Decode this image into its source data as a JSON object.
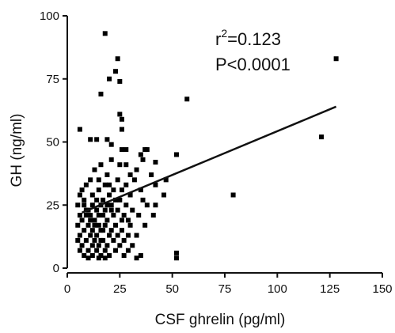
{
  "chart_data": {
    "type": "scatter",
    "title": "",
    "xlabel": "CSF ghrelin (pg/ml)",
    "ylabel": "GH (ng/ml)",
    "xlim": [
      0,
      150
    ],
    "ylim": [
      0,
      100
    ],
    "x_ticks": [
      0,
      25,
      50,
      75,
      100,
      125,
      150
    ],
    "y_ticks": [
      0,
      25,
      50,
      75,
      100
    ],
    "grid": false,
    "annotations": {
      "r2_base": "r",
      "r2_exp": "2",
      "r2_value": "=0.123",
      "p_value": "P<0.0001"
    },
    "regression_line": {
      "x": [
        7,
        128
      ],
      "y": [
        22,
        64
      ]
    },
    "points": [
      [
        18,
        93
      ],
      [
        24,
        83
      ],
      [
        128,
        83
      ],
      [
        23,
        78
      ],
      [
        20,
        75
      ],
      [
        25,
        74
      ],
      [
        57,
        67
      ],
      [
        16,
        69
      ],
      [
        25,
        61
      ],
      [
        26,
        59
      ],
      [
        26,
        55
      ],
      [
        6,
        55
      ],
      [
        11,
        51
      ],
      [
        14,
        51
      ],
      [
        19,
        51
      ],
      [
        121,
        52
      ],
      [
        21,
        49
      ],
      [
        26,
        47
      ],
      [
        28,
        47
      ],
      [
        37,
        47
      ],
      [
        38,
        47
      ],
      [
        35,
        45
      ],
      [
        52,
        45
      ],
      [
        36,
        43
      ],
      [
        21,
        43
      ],
      [
        16,
        41
      ],
      [
        25,
        41
      ],
      [
        28,
        41
      ],
      [
        42,
        42
      ],
      [
        13,
        39
      ],
      [
        33,
        39
      ],
      [
        30,
        37
      ],
      [
        19,
        37
      ],
      [
        40,
        37
      ],
      [
        15,
        35
      ],
      [
        24,
        35
      ],
      [
        11,
        35
      ],
      [
        32,
        35
      ],
      [
        47,
        35
      ],
      [
        9,
        33
      ],
      [
        18,
        33
      ],
      [
        28,
        33
      ],
      [
        42,
        33
      ],
      [
        7,
        31
      ],
      [
        15,
        31
      ],
      [
        22,
        31
      ],
      [
        35,
        31
      ],
      [
        12,
        29
      ],
      [
        20,
        29
      ],
      [
        30,
        29
      ],
      [
        46,
        29
      ],
      [
        79,
        29
      ],
      [
        8,
        27
      ],
      [
        17,
        27
      ],
      [
        23,
        27
      ],
      [
        25,
        27
      ],
      [
        36,
        27
      ],
      [
        5,
        25
      ],
      [
        12,
        25
      ],
      [
        16,
        25
      ],
      [
        19,
        25
      ],
      [
        28,
        25
      ],
      [
        38,
        25
      ],
      [
        42,
        25
      ],
      [
        9,
        23
      ],
      [
        14,
        23
      ],
      [
        21,
        23
      ],
      [
        24,
        23
      ],
      [
        31,
        23
      ],
      [
        6,
        21
      ],
      [
        11,
        21
      ],
      [
        17,
        21
      ],
      [
        22,
        21
      ],
      [
        27,
        21
      ],
      [
        34,
        21
      ],
      [
        41,
        21
      ],
      [
        7,
        19
      ],
      [
        13,
        19
      ],
      [
        19,
        19
      ],
      [
        26,
        19
      ],
      [
        29,
        19
      ],
      [
        5,
        17
      ],
      [
        10,
        17
      ],
      [
        15,
        17
      ],
      [
        18,
        17
      ],
      [
        23,
        17
      ],
      [
        30,
        17
      ],
      [
        37,
        17
      ],
      [
        8,
        15
      ],
      [
        12,
        15
      ],
      [
        16,
        15
      ],
      [
        21,
        15
      ],
      [
        26,
        15
      ],
      [
        6,
        13
      ],
      [
        11,
        13
      ],
      [
        14,
        13
      ],
      [
        20,
        13
      ],
      [
        24,
        13
      ],
      [
        29,
        13
      ],
      [
        33,
        13
      ],
      [
        5,
        11
      ],
      [
        9,
        11
      ],
      [
        13,
        11
      ],
      [
        17,
        11
      ],
      [
        22,
        11
      ],
      [
        27,
        11
      ],
      [
        7,
        9
      ],
      [
        12,
        9
      ],
      [
        15,
        9
      ],
      [
        19,
        9
      ],
      [
        25,
        9
      ],
      [
        31,
        9
      ],
      [
        6,
        7
      ],
      [
        10,
        7
      ],
      [
        14,
        7
      ],
      [
        18,
        7
      ],
      [
        23,
        7
      ],
      [
        29,
        7
      ],
      [
        52,
        6
      ],
      [
        8,
        5
      ],
      [
        12,
        5
      ],
      [
        16,
        5
      ],
      [
        20,
        5
      ],
      [
        27,
        5
      ],
      [
        35,
        5
      ],
      [
        52,
        4
      ],
      [
        10,
        4
      ],
      [
        15,
        4
      ],
      [
        18,
        4
      ],
      [
        33,
        4
      ],
      [
        9,
        21
      ],
      [
        14,
        27
      ],
      [
        20,
        33
      ],
      [
        10,
        23
      ],
      [
        13,
        17
      ],
      [
        17,
        15
      ],
      [
        6,
        29
      ],
      [
        8,
        25
      ],
      [
        11,
        19
      ],
      [
        16,
        11
      ],
      [
        21,
        25
      ],
      [
        26,
        31
      ],
      [
        18,
        23
      ],
      [
        15,
        21
      ]
    ]
  }
}
